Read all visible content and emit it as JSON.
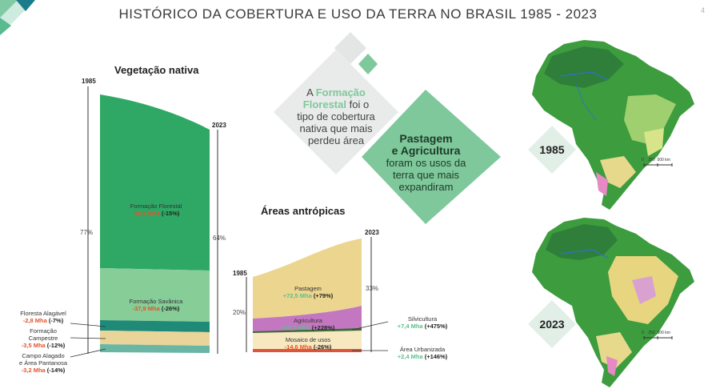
{
  "title": "HISTÓRICO DA COBERTURA E USO DA TERRA NO BRASIL 1985 - 2023",
  "page_number": "4",
  "native": {
    "heading": "Vegetação nativa",
    "year_start": "1985",
    "year_end": "2023",
    "pct_start": "77%",
    "pct_end": "64%",
    "forest": {
      "label": "Formação Florestal",
      "change": "-60,8 Mha",
      "pct": "(-15%)"
    },
    "savanna": {
      "label": "Formação Savânica",
      "change": "-37,9 Mha",
      "pct": "(-26%)"
    },
    "flooded_forest": {
      "label": "Floresta Alagável",
      "change": "-2,8 Mha",
      "pct": "(-7%)"
    },
    "grassland": {
      "label1": "Formação",
      "label2": "Campestre",
      "change": "-3,5 Mha",
      "pct": "(-12%)"
    },
    "wetland": {
      "label1": "Campo Alagado",
      "label2": "e Área Pantanosa",
      "change": "-3,2 Mha",
      "pct": "(-14%)"
    }
  },
  "anthropic": {
    "heading": "Áreas antrópicas",
    "year_start": "1985",
    "year_end": "2023",
    "pct_start": "20%",
    "pct_end": "33%",
    "pasture": {
      "label": "Pastagem",
      "change": "+72,5 Mha",
      "pct": "(+79%)"
    },
    "agriculture": {
      "label": "Agricultura",
      "change": "+42,3 Mha",
      "pct": "(+228%)"
    },
    "mosaic": {
      "label": "Mosaico de usos",
      "change": "-14,6 Mha",
      "pct": "(-26%)"
    },
    "silviculture": {
      "label": "Silvicultura",
      "change": "+7,4 Mha",
      "pct": "(+475%)"
    },
    "urban": {
      "label": "Área Urbanizada",
      "change": "+2,4 Mha",
      "pct": "(+146%)"
    }
  },
  "callout1": {
    "pre": "A",
    "highlight1": "Formação",
    "highlight2": "Florestal",
    "post1": "foi o",
    "line3": "tipo de cobertura",
    "line4": "nativa que mais",
    "line5": "perdeu área"
  },
  "callout2": {
    "line1": "Pastagem",
    "line2": "e Agricultura",
    "line3": "foram os usos da",
    "line4": "terra que mais",
    "line5": "expandiram"
  },
  "map_1985": {
    "year": "1985",
    "scale": [
      "0",
      "250",
      "500 km"
    ]
  },
  "map_2023": {
    "year": "2023",
    "scale": [
      "0",
      "250",
      "500 km"
    ]
  },
  "colors": {
    "forest": "#2fa866",
    "savanna": "#86cd98",
    "flooded": "#1f8a78",
    "grassland": "#e9d49a",
    "wetland": "#6ab6a5",
    "pasture": "#ecd58f",
    "agriculture": "#c377c0",
    "mosaic": "#f7e8c0",
    "urban": "#e0543a"
  }
}
